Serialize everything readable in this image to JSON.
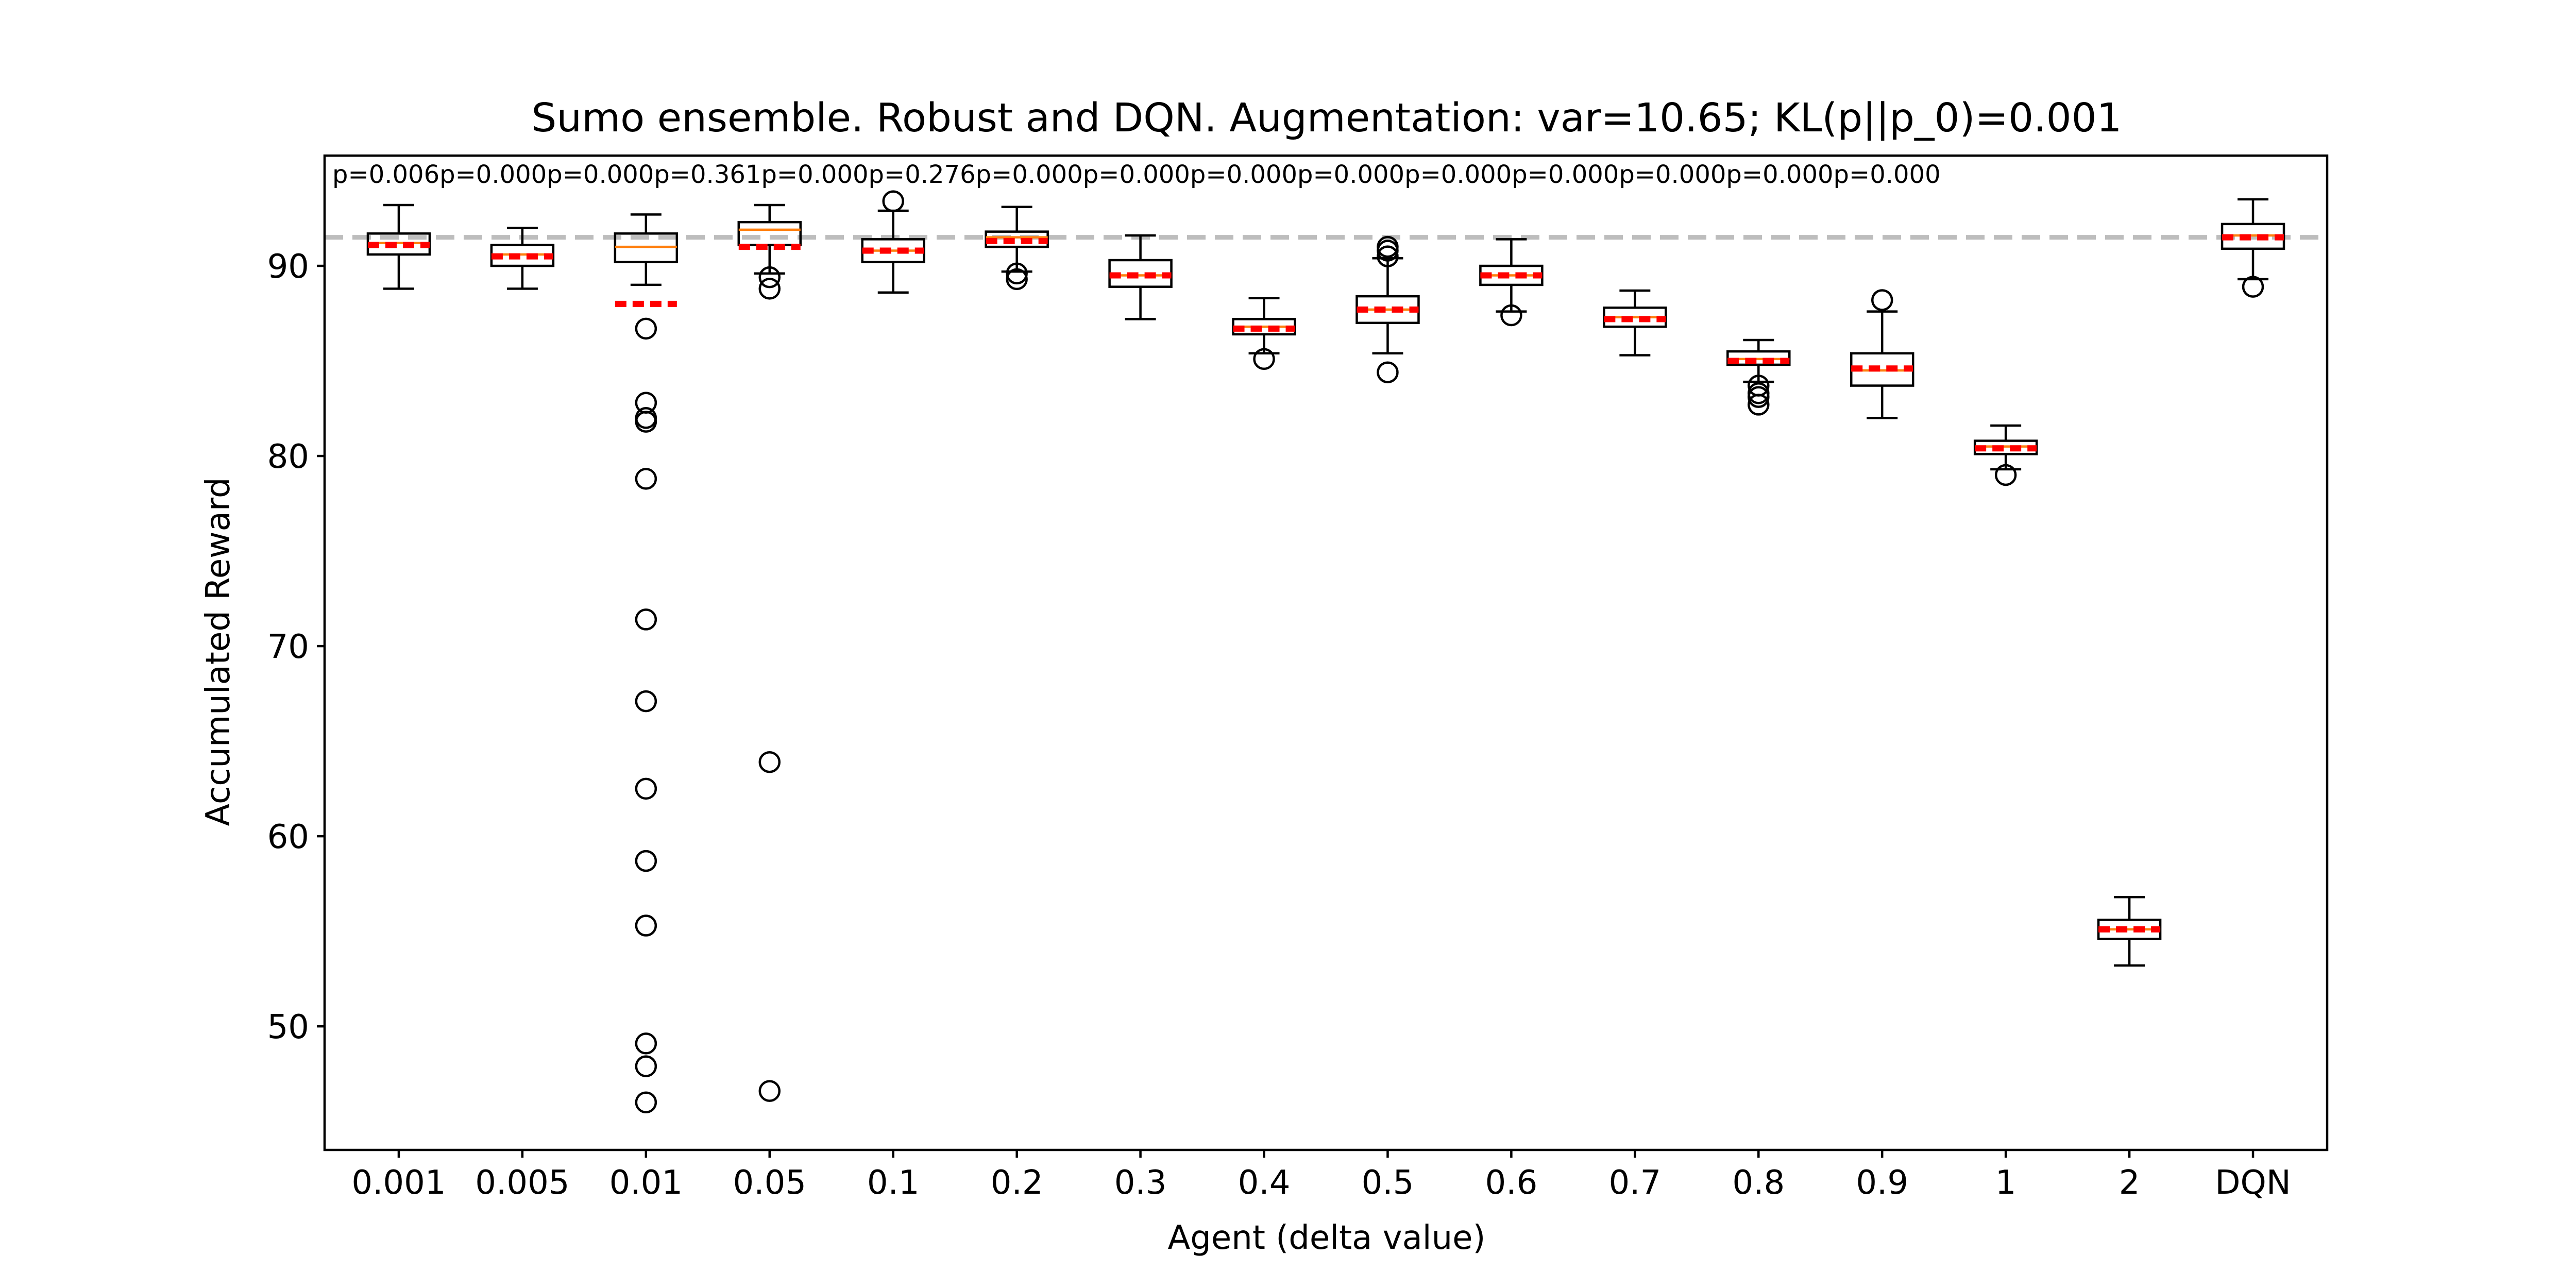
{
  "chart_data": {
    "type": "box",
    "title": "Sumo ensemble. Robust and DQN. Augmentation: var=10.65; KL(p||p_0)=0.001",
    "xlabel": "Agent (delta value)",
    "ylabel": "Accumulated Reward",
    "ylim": [
      43.5,
      95.8
    ],
    "yticks": [
      50,
      60,
      70,
      80,
      90
    ],
    "categories": [
      "0.001",
      "0.005",
      "0.01",
      "0.05",
      "0.1",
      "0.2",
      "0.3",
      "0.4",
      "0.5",
      "0.6",
      "0.7",
      "0.8",
      "0.9",
      "1",
      "2",
      "DQN"
    ],
    "p_values": [
      "p=0.006",
      "p=0.000",
      "p=0.000",
      "p=0.361",
      "p=0.000",
      "p=0.276",
      "p=0.000",
      "p=0.000",
      "p=0.000",
      "p=0.000",
      "p=0.000",
      "p=0.000",
      "p=0.000",
      "p=0.000",
      "p=0.000"
    ],
    "reference_line": {
      "value": 91.5,
      "style": "dashed",
      "color": "#bdbdbd"
    },
    "grid": false,
    "legend": "none",
    "colors": {
      "box": "#000000",
      "median": "#ff7f0e",
      "mean": "#ff0000",
      "reference": "#bdbdbd"
    },
    "boxes": [
      {
        "whislo": 88.8,
        "q1": 90.6,
        "med": 91.2,
        "q3": 91.7,
        "whishi": 93.2,
        "mean": 91.1,
        "fliers": []
      },
      {
        "whislo": 88.8,
        "q1": 90.0,
        "med": 90.6,
        "q3": 91.1,
        "whishi": 92.0,
        "mean": 90.5,
        "fliers": []
      },
      {
        "whislo": 89.0,
        "q1": 90.2,
        "med": 91.0,
        "q3": 91.7,
        "whishi": 92.7,
        "mean": 88.0,
        "fliers": [
          86.7,
          82.8,
          82.0,
          81.8,
          78.8,
          71.4,
          67.1,
          62.5,
          58.7,
          55.3,
          49.1,
          47.9,
          46.0
        ]
      },
      {
        "whislo": 89.6,
        "q1": 91.1,
        "med": 91.9,
        "q3": 92.3,
        "whishi": 93.2,
        "mean": 91.0,
        "fliers": [
          89.4,
          88.8,
          63.9,
          46.6
        ]
      },
      {
        "whislo": 88.6,
        "q1": 90.2,
        "med": 90.8,
        "q3": 91.4,
        "whishi": 92.9,
        "mean": 90.8,
        "fliers": [
          93.4
        ]
      },
      {
        "whislo": 89.7,
        "q1": 91.0,
        "med": 91.5,
        "q3": 91.8,
        "whishi": 93.1,
        "mean": 91.3,
        "fliers": [
          89.6,
          89.3
        ]
      },
      {
        "whislo": 87.2,
        "q1": 88.9,
        "med": 89.5,
        "q3": 90.3,
        "whishi": 91.6,
        "mean": 89.5,
        "fliers": []
      },
      {
        "whislo": 85.4,
        "q1": 86.4,
        "med": 86.8,
        "q3": 87.2,
        "whishi": 88.3,
        "mean": 86.7,
        "fliers": [
          85.1
        ]
      },
      {
        "whislo": 85.4,
        "q1": 87.0,
        "med": 87.7,
        "q3": 88.4,
        "whishi": 90.4,
        "mean": 87.7,
        "fliers": [
          91.0,
          90.8,
          90.5,
          84.4
        ]
      },
      {
        "whislo": 87.6,
        "q1": 89.0,
        "med": 89.5,
        "q3": 90.0,
        "whishi": 91.4,
        "mean": 89.5,
        "fliers": [
          87.4
        ]
      },
      {
        "whislo": 85.3,
        "q1": 86.8,
        "med": 87.3,
        "q3": 87.8,
        "whishi": 88.7,
        "mean": 87.2,
        "fliers": []
      },
      {
        "whislo": 83.9,
        "q1": 84.8,
        "med": 85.1,
        "q3": 85.5,
        "whishi": 86.1,
        "mean": 85.0,
        "fliers": [
          83.7,
          83.3,
          83.1,
          82.7
        ]
      },
      {
        "whislo": 82.0,
        "q1": 83.7,
        "med": 84.5,
        "q3": 85.4,
        "whishi": 87.6,
        "mean": 84.6,
        "fliers": [
          88.2
        ]
      },
      {
        "whislo": 79.3,
        "q1": 80.1,
        "med": 80.5,
        "q3": 80.8,
        "whishi": 81.6,
        "mean": 80.4,
        "fliers": [
          79.0
        ]
      },
      {
        "whislo": 53.2,
        "q1": 54.6,
        "med": 55.1,
        "q3": 55.6,
        "whishi": 56.8,
        "mean": 55.1,
        "fliers": []
      },
      {
        "whislo": 89.3,
        "q1": 90.9,
        "med": 91.6,
        "q3": 92.2,
        "whishi": 93.5,
        "mean": 91.5,
        "fliers": [
          88.9
        ]
      }
    ]
  }
}
